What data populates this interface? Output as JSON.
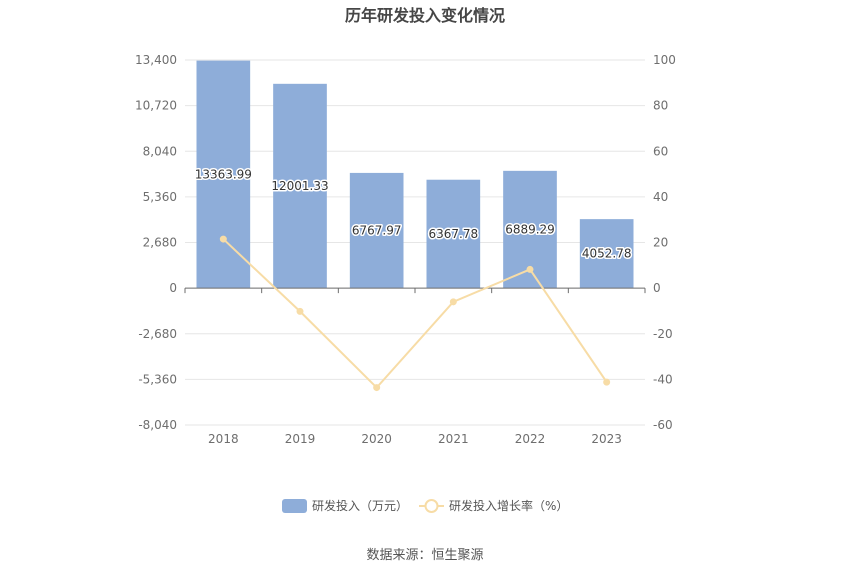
{
  "chart_data": {
    "type": "bar",
    "title": "历年研发投入变化情况",
    "categories": [
      "2018",
      "2019",
      "2020",
      "2021",
      "2022",
      "2023"
    ],
    "series": [
      {
        "name": "研发投入（万元）",
        "type": "bar",
        "axis": "left",
        "color": "#8eadd9",
        "values": [
          13363.99,
          12001.33,
          6767.97,
          6367.78,
          6889.29,
          4052.78
        ],
        "labels": [
          "13363.99",
          "12001.33",
          "6767.97",
          "6367.78",
          "6889.29",
          "4052.78"
        ]
      },
      {
        "name": "研发投入增长率（%）",
        "type": "line",
        "axis": "right",
        "color": "#f7dca6",
        "values": [
          21.5,
          -10.2,
          -43.6,
          -6.0,
          8.2,
          -41.2
        ]
      }
    ],
    "y_left": {
      "min": -8040,
      "max": 13400,
      "ticks": [
        13400,
        10720,
        8040,
        5360,
        2680,
        0,
        -2680,
        -5360,
        -8040
      ],
      "tick_labels": [
        "13,400",
        "10,720",
        "8,040",
        "5,360",
        "2,680",
        "0",
        "-2,680",
        "-5,360",
        "-8,040"
      ]
    },
    "y_right": {
      "min": -60,
      "max": 100,
      "ticks": [
        100,
        80,
        60,
        40,
        20,
        0,
        -20,
        -40,
        -60
      ],
      "tick_labels": [
        "100",
        "80",
        "60",
        "40",
        "20",
        "0",
        "-20",
        "-40",
        "-60"
      ]
    },
    "grid": true,
    "legend": "bottom-center",
    "source": "数据来源：恒生聚源"
  }
}
